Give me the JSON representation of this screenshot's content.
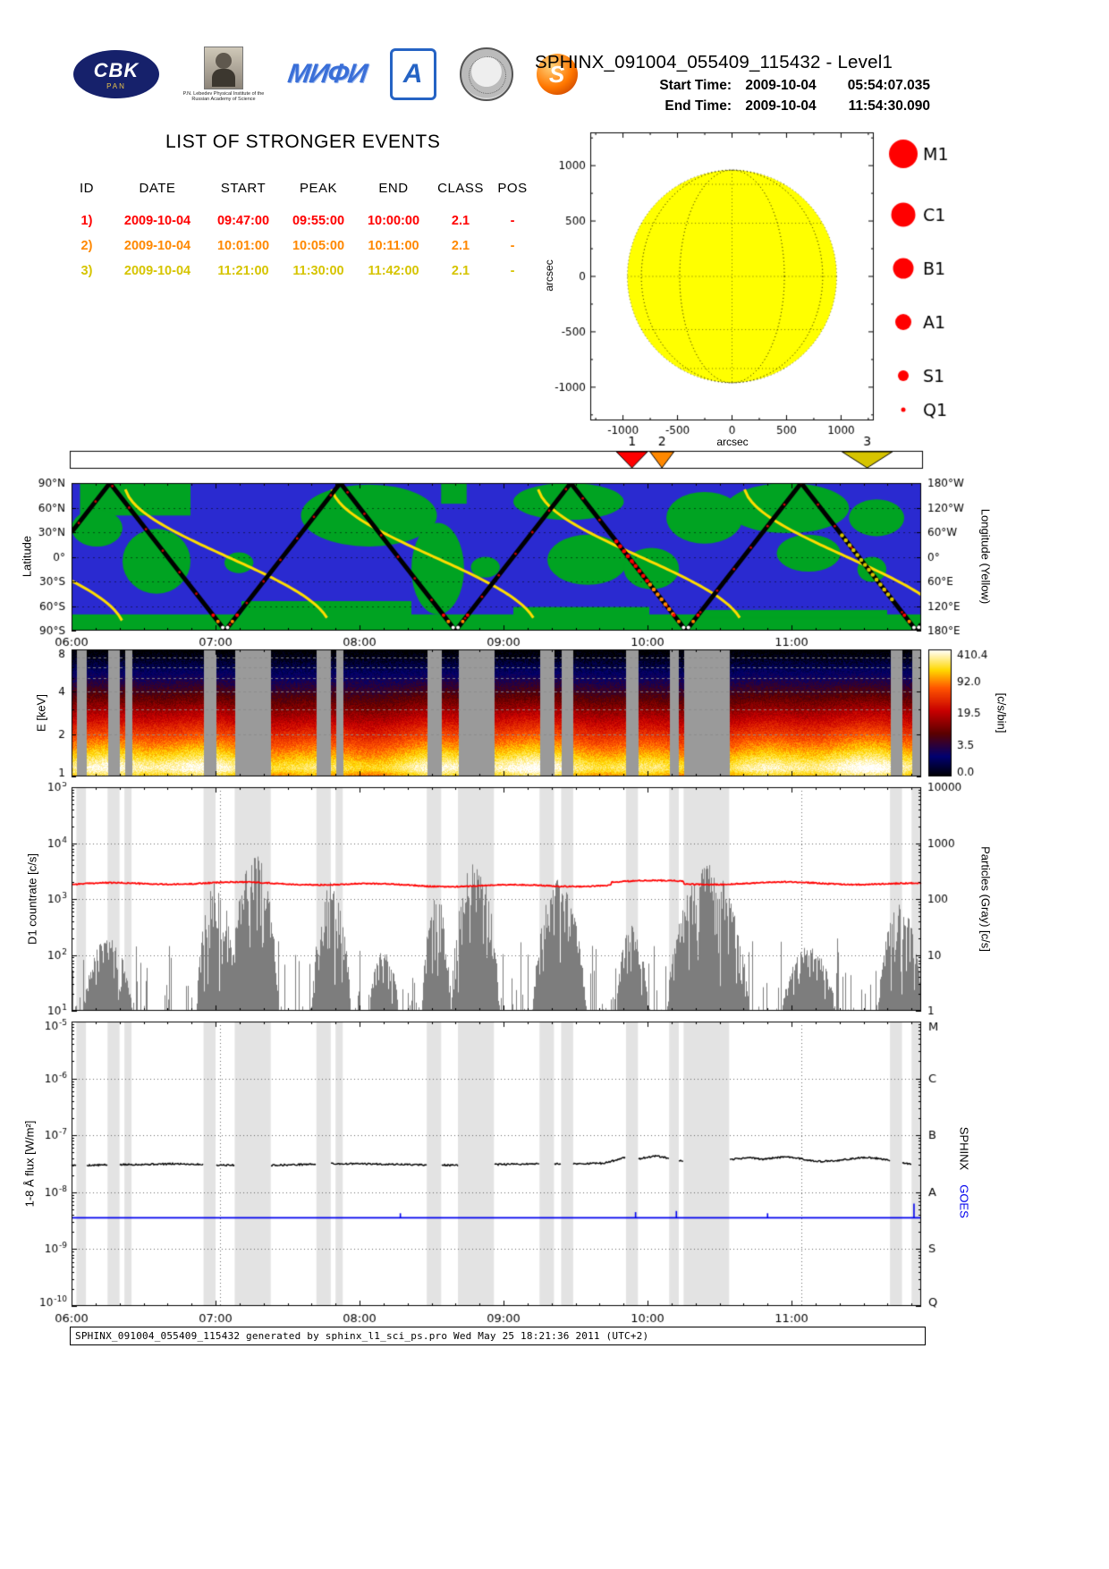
{
  "header": {
    "title": "SPHINX_091004_055409_115432 - Level1",
    "start_label": "Start Time:",
    "start_date": "2009-10-04",
    "start_clock": "05:54:07.035",
    "end_label": "End Time:",
    "end_date": "2009-10-04",
    "end_clock": "11:54:30.090",
    "logos": {
      "cbk_text": "CBK",
      "cbk_sub": "PAN",
      "lebedev_caption": "P.N. Lebedev Physical Institute of the Russian Academy of Science",
      "mephi_text": "МИФИ",
      "arch_text": "A",
      "sphinx_text": "S"
    }
  },
  "events": {
    "title": "LIST OF STRONGER EVENTS",
    "columns": [
      "ID",
      "DATE",
      "START",
      "PEAK",
      "END",
      "CLASS",
      "POS"
    ],
    "rows": [
      {
        "id": "1)",
        "num": "1",
        "date": "2009-10-04",
        "start": "09:47:00",
        "peak": "09:55:00",
        "end": "10:00:00",
        "class": "2.1",
        "pos": "-",
        "color": "#ff0000",
        "start_min": 227,
        "end_min": 240
      },
      {
        "id": "2)",
        "num": "2",
        "date": "2009-10-04",
        "start": "10:01:00",
        "peak": "10:05:00",
        "end": "10:11:00",
        "class": "2.1",
        "pos": "-",
        "color": "#ff8800",
        "start_min": 241,
        "end_min": 251
      },
      {
        "id": "3)",
        "num": "3",
        "date": "2009-10-04",
        "start": "11:21:00",
        "peak": "11:30:00",
        "end": "11:42:00",
        "class": "2.1",
        "pos": "-",
        "color": "#d6c400",
        "start_min": 321,
        "end_min": 342
      }
    ]
  },
  "footer": {
    "text": "SPHINX_091004_055409_115432 generated by sphinx_l1_sci_ps.pro Wed May 25 18:21:36 2011 (UTC+2)"
  },
  "time_axis": {
    "t_max_min": 354,
    "hour_labels": [
      "06:00",
      "07:00",
      "08:00",
      "09:00",
      "10:00",
      "11:00"
    ],
    "hour_minutes": [
      0,
      60,
      120,
      180,
      240,
      300
    ]
  },
  "chart_data": [
    {
      "id": "sun_disk",
      "type": "scatter",
      "xlabel": "arcsec",
      "ylabel": "arcsec",
      "xlim": [
        -1300,
        1300
      ],
      "ylim": [
        -1300,
        1300
      ],
      "xticks": [
        -1000,
        -500,
        0,
        500,
        1000
      ],
      "yticks": [
        -1000,
        -500,
        0,
        500,
        1000
      ],
      "sun_radius_arcsec": 960,
      "disk_color": "#ffff00",
      "grid_step_deg": 30,
      "flare_positions": [],
      "legend": {
        "color": "#ff0000",
        "items": [
          {
            "label": "M1",
            "r": 16
          },
          {
            "label": "C1",
            "r": 13.5
          },
          {
            "label": "B1",
            "r": 11.5
          },
          {
            "label": "A1",
            "r": 9
          },
          {
            "label": "S1",
            "r": 6
          },
          {
            "label": "Q1",
            "r": 2.5
          }
        ]
      }
    },
    {
      "id": "ground_track",
      "type": "line",
      "ylabel_left": "Latitude",
      "ylabel_right": "Longitude (Yellow)",
      "yticks_left": [
        "90°N",
        "60°N",
        "30°N",
        "0°",
        "30°S",
        "60°S",
        "90°S"
      ],
      "yticks_right": [
        "180°W",
        "120°W",
        "60°W",
        "0°",
        "60°E",
        "120°E",
        "180°E"
      ],
      "ocean_color": "#2a2ad0",
      "land_color": "#00a322",
      "track_color": "#000000",
      "longitude_color": "#ffdd00",
      "latitude_vertices": [
        [
          0,
          30
        ],
        [
          16,
          90
        ],
        [
          64,
          -90
        ],
        [
          112,
          90
        ],
        [
          160,
          -90
        ],
        [
          208,
          90
        ],
        [
          256,
          -90
        ],
        [
          304,
          90
        ],
        [
          352,
          -90
        ],
        [
          354,
          -82
        ]
      ],
      "trough_times": [
        64,
        160,
        256,
        352
      ],
      "longitude_wraps": [
        -64,
        22,
        108,
        194,
        280,
        366
      ],
      "land_regions": [
        [
          0.0,
          0.89,
          1.0,
          0.11,
          "r"
        ],
        [
          0.2,
          0.8,
          0.2,
          0.1,
          "r"
        ],
        [
          0.52,
          0.84,
          0.16,
          0.06,
          "r"
        ],
        [
          0.74,
          0.86,
          0.22,
          0.05,
          "r"
        ],
        [
          0.01,
          0.0,
          0.13,
          0.22,
          "r"
        ],
        [
          0.0,
          0.18,
          0.06,
          0.25,
          "e"
        ],
        [
          0.06,
          0.31,
          0.08,
          0.44,
          "e"
        ],
        [
          0.27,
          0.01,
          0.16,
          0.42,
          "e"
        ],
        [
          0.4,
          0.27,
          0.062,
          0.62,
          "e"
        ],
        [
          0.435,
          0.0,
          0.03,
          0.14,
          "r"
        ],
        [
          0.52,
          0.0,
          0.13,
          0.25,
          "e"
        ],
        [
          0.56,
          0.35,
          0.095,
          0.34,
          "e"
        ],
        [
          0.65,
          0.44,
          0.065,
          0.28,
          "e"
        ],
        [
          0.7,
          0.06,
          0.09,
          0.35,
          "e"
        ],
        [
          0.77,
          0.0,
          0.145,
          0.34,
          "e"
        ],
        [
          0.83,
          0.35,
          0.075,
          0.25,
          "e"
        ],
        [
          0.915,
          0.11,
          0.065,
          0.25,
          "e"
        ],
        [
          0.18,
          0.47,
          0.034,
          0.14,
          "e"
        ],
        [
          0.47,
          0.5,
          0.034,
          0.14,
          "e"
        ],
        [
          0.925,
          0.5,
          0.034,
          0.17,
          "e"
        ]
      ]
    },
    {
      "id": "spectrogram",
      "type": "heatmap",
      "ylabel": "E [keV]",
      "ylim_kev": [
        1,
        8
      ],
      "yticks": [
        1,
        2,
        4,
        8
      ],
      "minor_yticks": [
        3,
        5,
        6,
        7
      ],
      "colorbar_label": "[c/s/bin]",
      "colorbar_ticks": [
        "410.4",
        "92.0",
        "19.5",
        "3.5",
        "0.0"
      ],
      "gap_color": "#9a9a9a",
      "colormap_stops": [
        [
          0,
          "#000000"
        ],
        [
          0.16,
          "#000070"
        ],
        [
          0.34,
          "#5a0000"
        ],
        [
          0.52,
          "#c80000"
        ],
        [
          0.7,
          "#ff5500"
        ],
        [
          0.84,
          "#ffd800"
        ],
        [
          1,
          "#ffffff"
        ]
      ],
      "gaps_min": [
        [
          2,
          6
        ],
        [
          15,
          20
        ],
        [
          22,
          25
        ],
        [
          55,
          60
        ],
        [
          68,
          83
        ],
        [
          102,
          108
        ],
        [
          110,
          113
        ],
        [
          148,
          154
        ],
        [
          161,
          176
        ],
        [
          195,
          201
        ],
        [
          204,
          209
        ],
        [
          231,
          236
        ],
        [
          249,
          253
        ],
        [
          255,
          274
        ],
        [
          341,
          346
        ],
        [
          350,
          354
        ]
      ]
    },
    {
      "id": "d1_countrate",
      "type": "line",
      "ylabel_left": "D1 countrate [c/s]",
      "ylabel_right": "Particles (Gray) [c/s]",
      "ylim_log": [
        1,
        5
      ],
      "yticks_left_exp": [
        "1",
        "2",
        "3",
        "4",
        "5"
      ],
      "yticks_right": [
        "10000",
        "1000",
        "100",
        "10",
        "1"
      ],
      "countrate_log": 3.26,
      "countrate_color": "#ff0000",
      "particles_color": "#7d7d7d",
      "shade_color": "#e3e3e3",
      "orbit_marker_times": [
        62,
        304
      ],
      "baseline_log": 1.0,
      "particle_bursts": [
        [
          5,
          25,
          2.3
        ],
        [
          52,
          68,
          3.35
        ],
        [
          66,
          86,
          3.85
        ],
        [
          100,
          116,
          3.35
        ],
        [
          124,
          136,
          2.1
        ],
        [
          146,
          158,
          3.05
        ],
        [
          158,
          178,
          3.7
        ],
        [
          192,
          214,
          3.35
        ],
        [
          227,
          240,
          2.6
        ],
        [
          248,
          282,
          3.65
        ],
        [
          296,
          318,
          2.15
        ],
        [
          336,
          354,
          2.95
        ]
      ]
    },
    {
      "id": "flux",
      "type": "line",
      "ylabel": "1-8 Å flux [W/m²]",
      "ylim_log": [
        -10,
        -5
      ],
      "class_letters": [
        "M",
        "C",
        "B",
        "A",
        "S",
        "Q"
      ],
      "class_logs": [
        -5,
        -6,
        -7,
        -8,
        -9,
        -10
      ],
      "legend_right": [
        "SPHINX",
        "GOES"
      ],
      "sphinx_color": "#000000",
      "goes_color": "#0000ee",
      "goes_level_log": -8.45,
      "goes_spikes": [
        [
          137,
          0.08
        ],
        [
          235,
          0.1
        ],
        [
          252,
          0.12
        ],
        [
          290,
          0.08
        ],
        [
          351,
          0.25
        ]
      ],
      "orbit_marker_times": [
        62,
        304
      ],
      "shade_color": "#e3e3e3",
      "flux_points": [
        [
          0,
          -7.53
        ],
        [
          15,
          -7.52
        ],
        [
          30,
          -7.51
        ],
        [
          45,
          -7.5
        ],
        [
          60,
          -7.52
        ],
        [
          75,
          -7.53
        ],
        [
          90,
          -7.52
        ],
        [
          105,
          -7.5
        ],
        [
          120,
          -7.5
        ],
        [
          135,
          -7.51
        ],
        [
          150,
          -7.52
        ],
        [
          165,
          -7.53
        ],
        [
          180,
          -7.51
        ],
        [
          195,
          -7.5
        ],
        [
          210,
          -7.5
        ],
        [
          222,
          -7.49
        ],
        [
          227,
          -7.43
        ],
        [
          231,
          -7.38
        ],
        [
          235,
          -7.42
        ],
        [
          240,
          -7.39
        ],
        [
          243,
          -7.36
        ],
        [
          247,
          -7.39
        ],
        [
          251,
          -7.43
        ],
        [
          256,
          -7.47
        ],
        [
          262,
          -7.49
        ],
        [
          270,
          -7.46
        ],
        [
          276,
          -7.42
        ],
        [
          282,
          -7.39
        ],
        [
          288,
          -7.42
        ],
        [
          294,
          -7.39
        ],
        [
          300,
          -7.38
        ],
        [
          306,
          -7.43
        ],
        [
          312,
          -7.46
        ],
        [
          318,
          -7.45
        ],
        [
          322,
          -7.43
        ],
        [
          327,
          -7.4
        ],
        [
          332,
          -7.39
        ],
        [
          337,
          -7.41
        ],
        [
          342,
          -7.45
        ],
        [
          347,
          -7.49
        ],
        [
          354,
          -7.52
        ]
      ]
    }
  ]
}
